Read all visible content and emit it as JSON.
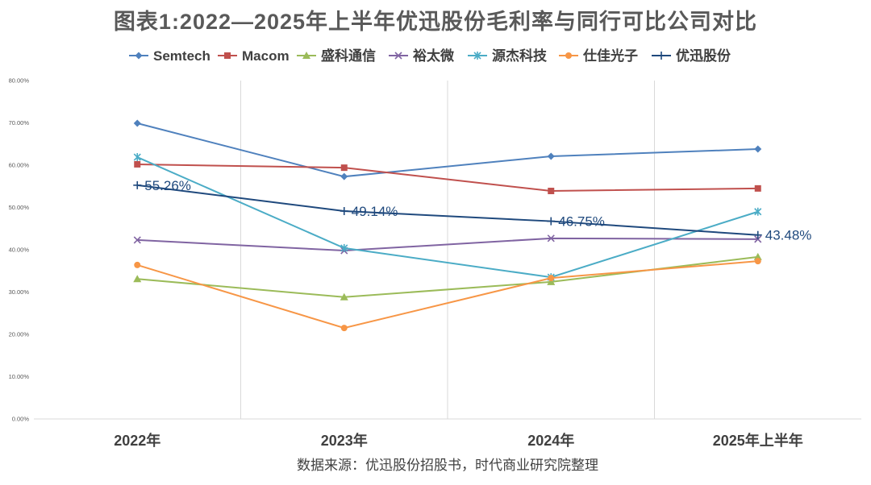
{
  "chart_data": {
    "type": "line",
    "title": "图表1:2022—2025年上半年优迅股份毛利率与同行可比公司对比",
    "source": "数据来源：优迅股份招股书，时代商业研究院整理",
    "categories": [
      "2022年",
      "2023年",
      "2024年",
      "2025年上半年"
    ],
    "ylim": [
      0,
      80
    ],
    "y_tick_labels": [
      "0.00%",
      "10.00%",
      "20.00%",
      "30.00%",
      "40.00%",
      "50.00%",
      "60.00%",
      "70.00%",
      "80.00%"
    ],
    "grid": {
      "horizontal": false,
      "vertical": true
    },
    "legend_position": "top",
    "series": [
      {
        "name": "Semtech",
        "color": "#4F81BD",
        "marker": "diamond",
        "values": [
          69.9,
          57.3,
          62.1,
          63.8
        ]
      },
      {
        "name": "Macom",
        "color": "#C0504D",
        "marker": "square",
        "values": [
          60.2,
          59.4,
          53.9,
          54.5
        ]
      },
      {
        "name": "盛科通信",
        "color": "#9BBB59",
        "marker": "triangle",
        "values": [
          33.1,
          28.8,
          32.4,
          38.3
        ]
      },
      {
        "name": "裕太微",
        "color": "#8064A2",
        "marker": "x",
        "values": [
          42.3,
          39.8,
          42.7,
          42.5
        ]
      },
      {
        "name": "源杰科技",
        "color": "#4BACC6",
        "marker": "asterisk",
        "values": [
          61.9,
          40.4,
          33.5,
          49.0
        ]
      },
      {
        "name": "仕佳光子",
        "color": "#F79646",
        "marker": "circle",
        "values": [
          36.4,
          21.5,
          33.3,
          37.3
        ]
      },
      {
        "name": "优迅股份",
        "color": "#1F497D",
        "marker": "plus",
        "values": [
          55.26,
          49.14,
          46.75,
          43.48
        ],
        "labels": [
          "55.26%",
          "49.14%",
          "46.75%",
          "43.48%"
        ]
      }
    ]
  }
}
